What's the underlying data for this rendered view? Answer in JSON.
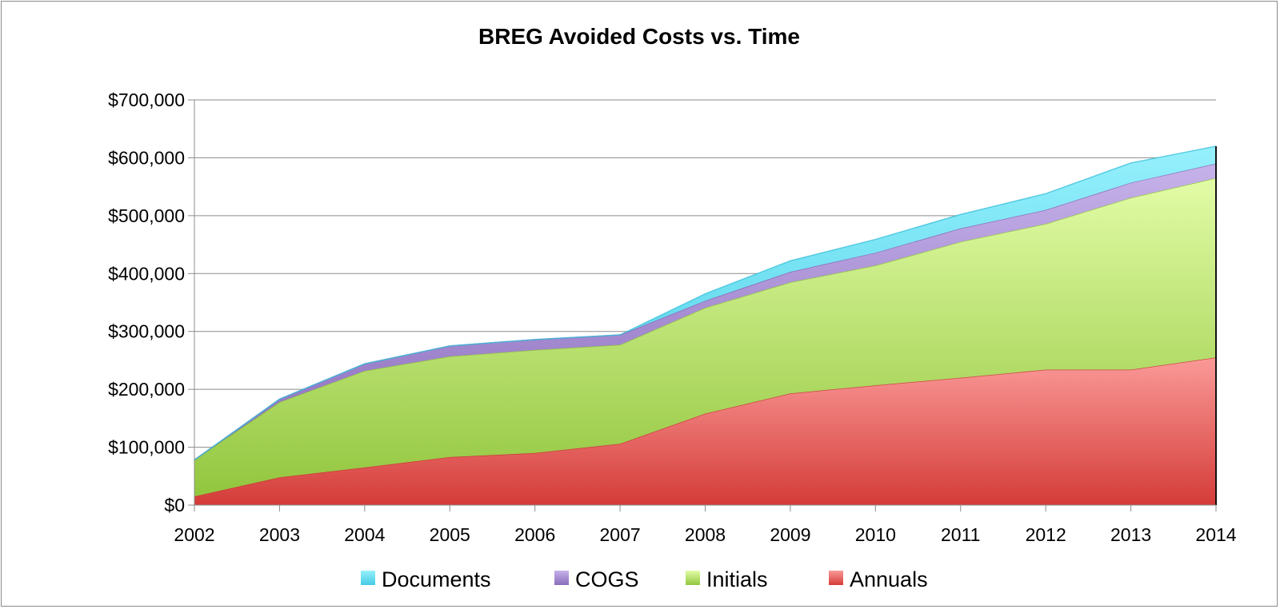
{
  "chart_data": {
    "type": "area",
    "stacked": true,
    "title": "BREG Avoided Costs vs. Time",
    "xlabel": "",
    "ylabel": "",
    "categories": [
      "2002",
      "2003",
      "2004",
      "2005",
      "2006",
      "2007",
      "2008",
      "2009",
      "2010",
      "2011",
      "2012",
      "2013",
      "2014"
    ],
    "ylim": [
      0,
      700000
    ],
    "y_ticks": [
      0,
      100000,
      200000,
      300000,
      400000,
      500000,
      600000,
      700000
    ],
    "y_tick_labels": [
      "$0",
      "$100,000",
      "$200,000",
      "$300,000",
      "$400,000",
      "$500,000",
      "$600,000",
      "$700,000"
    ],
    "grid": true,
    "legend_position": "bottom",
    "series": [
      {
        "name": "Annuals",
        "color": "#e84848",
        "values": [
          15000,
          48000,
          65000,
          83000,
          90000,
          106000,
          158000,
          193000,
          207000,
          220000,
          234000,
          234000,
          255000
        ]
      },
      {
        "name": "Initials",
        "color": "#a8d858",
        "values": [
          63000,
          130000,
          167000,
          174000,
          178000,
          171000,
          183000,
          192000,
          207000,
          235000,
          252000,
          297000,
          310000
        ]
      },
      {
        "name": "COGS",
        "color": "#9a7ec6",
        "values": [
          0,
          5000,
          12000,
          18000,
          18000,
          17000,
          12000,
          18000,
          22000,
          23000,
          24000,
          26000,
          25000
        ]
      },
      {
        "name": "Documents",
        "color": "#58d8ec",
        "values": [
          0,
          0,
          0,
          0,
          0,
          0,
          12000,
          19000,
          23000,
          24000,
          28000,
          34000,
          30000
        ]
      }
    ],
    "legend_order": [
      "Documents",
      "COGS",
      "Initials",
      "Annuals"
    ]
  }
}
